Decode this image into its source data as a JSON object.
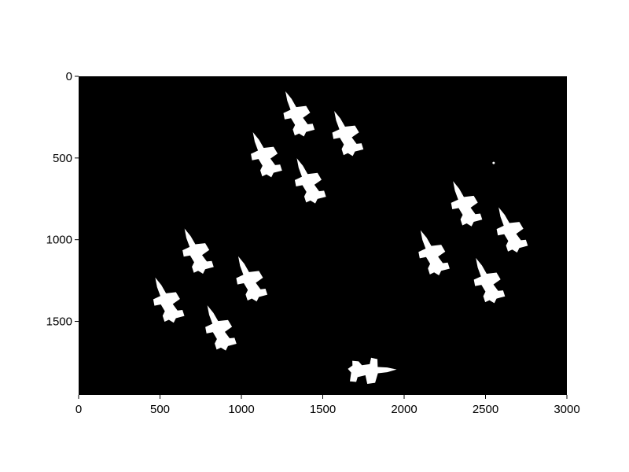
{
  "colors": {
    "background": "#ffffff",
    "plot_area": "#000000",
    "foreground": "#ffffff",
    "axis": "#000000"
  },
  "axes": {
    "x_range": [
      0,
      3000
    ],
    "y_range": [
      0,
      1950
    ],
    "y_reversed": true,
    "x_ticks": [
      {
        "value": 0,
        "label": "0"
      },
      {
        "value": 500,
        "label": "500"
      },
      {
        "value": 1000,
        "label": "1000"
      },
      {
        "value": 1500,
        "label": "1500"
      },
      {
        "value": 2000,
        "label": "2000"
      },
      {
        "value": 2500,
        "label": "2500"
      },
      {
        "value": 3000,
        "label": "3000"
      }
    ],
    "y_ticks": [
      {
        "value": 0,
        "label": "0"
      },
      {
        "value": 500,
        "label": "500"
      },
      {
        "value": 1000,
        "label": "1000"
      },
      {
        "value": 1500,
        "label": "1500"
      }
    ]
  },
  "image_content": {
    "description_icon": "binary-mask-aircraft-icon",
    "aircraft_centers": [
      {
        "x": 1340,
        "y": 240,
        "rotation": -25
      },
      {
        "x": 1640,
        "y": 360,
        "rotation": -25
      },
      {
        "x": 1140,
        "y": 490,
        "rotation": -25
      },
      {
        "x": 1410,
        "y": 650,
        "rotation": -25
      },
      {
        "x": 2370,
        "y": 790,
        "rotation": -25
      },
      {
        "x": 2650,
        "y": 950,
        "rotation": -25
      },
      {
        "x": 2170,
        "y": 1090,
        "rotation": -25
      },
      {
        "x": 720,
        "y": 1080,
        "rotation": -25
      },
      {
        "x": 1050,
        "y": 1250,
        "rotation": -25
      },
      {
        "x": 2510,
        "y": 1260,
        "rotation": -25
      },
      {
        "x": 540,
        "y": 1380,
        "rotation": -25
      },
      {
        "x": 860,
        "y": 1550,
        "rotation": -25
      },
      {
        "x": 1790,
        "y": 1800,
        "rotation": 88
      }
    ],
    "dots": [
      {
        "x": 2550,
        "y": 530
      }
    ]
  }
}
